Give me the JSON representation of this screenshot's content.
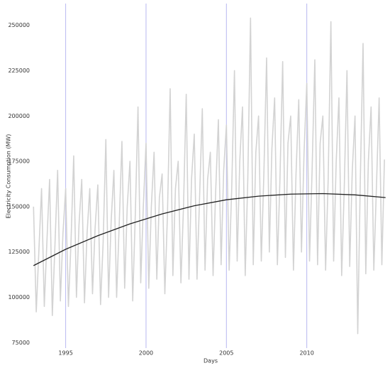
{
  "chart_data": {
    "type": "line",
    "x_label": "Days",
    "y_label": "Electricity Consumption (MW)",
    "xlim": [
      1992.9,
      2015.0
    ],
    "ylim": [
      72000,
      262000
    ],
    "xticks": [
      1995,
      2000,
      2005,
      2010
    ],
    "yticks": [
      75000,
      100000,
      125000,
      150000,
      175000,
      200000,
      225000,
      250000
    ],
    "grid_color": "#b8b8f0",
    "series": [
      {
        "color": "#d3d3d3",
        "x": [
          1993,
          1993.17,
          1993.33,
          1993.5,
          1993.67,
          1993.83,
          1994,
          1994.17,
          1994.33,
          1994.5,
          1994.67,
          1994.83,
          1995,
          1995.17,
          1995.33,
          1995.5,
          1995.67,
          1995.83,
          1996,
          1996.17,
          1996.33,
          1996.5,
          1996.67,
          1996.83,
          1997,
          1997.17,
          1997.33,
          1997.5,
          1997.67,
          1997.83,
          1998,
          1998.17,
          1998.33,
          1998.5,
          1998.67,
          1998.83,
          1999,
          1999.17,
          1999.33,
          1999.5,
          1999.67,
          1999.83,
          2000,
          2000.17,
          2000.33,
          2000.5,
          2000.67,
          2000.83,
          2001,
          2001.17,
          2001.33,
          2001.5,
          2001.67,
          2001.83,
          2002,
          2002.17,
          2002.33,
          2002.5,
          2002.67,
          2002.83,
          2003,
          2003.17,
          2003.33,
          2003.5,
          2003.67,
          2003.83,
          2004,
          2004.17,
          2004.33,
          2004.5,
          2004.67,
          2004.83,
          2005,
          2005.17,
          2005.33,
          2005.5,
          2005.67,
          2005.83,
          2006,
          2006.17,
          2006.33,
          2006.5,
          2006.67,
          2006.83,
          2007,
          2007.17,
          2007.33,
          2007.5,
          2007.67,
          2007.83,
          2008,
          2008.17,
          2008.33,
          2008.5,
          2008.67,
          2008.83,
          2009,
          2009.17,
          2009.33,
          2009.5,
          2009.67,
          2009.83,
          2010,
          2010.17,
          2010.33,
          2010.5,
          2010.67,
          2010.83,
          2011,
          2011.17,
          2011.33,
          2011.5,
          2011.67,
          2011.83,
          2012,
          2012.17,
          2012.33,
          2012.5,
          2012.67,
          2012.83,
          2013,
          2013.17,
          2013.33,
          2013.5,
          2013.67,
          2013.83,
          2014,
          2014.17,
          2014.33,
          2014.5,
          2014.67,
          2014.83
        ],
        "values": [
          150000,
          92000,
          125000,
          160000,
          95000,
          130000,
          165000,
          90000,
          128000,
          170000,
          98000,
          135000,
          160000,
          95000,
          130000,
          178000,
          100000,
          140000,
          165000,
          97000,
          135000,
          160000,
          102000,
          138000,
          162000,
          96000,
          130000,
          187000,
          100000,
          142000,
          170000,
          100000,
          140000,
          186000,
          105000,
          150000,
          175000,
          98000,
          145000,
          205000,
          108000,
          150000,
          185000,
          105000,
          150000,
          180000,
          110000,
          155000,
          168000,
          102000,
          145000,
          215000,
          112000,
          160000,
          175000,
          108000,
          150000,
          212000,
          110000,
          165000,
          190000,
          110000,
          155000,
          204000,
          115000,
          165000,
          180000,
          112000,
          158000,
          198000,
          118000,
          170000,
          195000,
          115000,
          160000,
          225000,
          120000,
          175000,
          205000,
          112000,
          165000,
          254000,
          118000,
          180000,
          200000,
          120000,
          168000,
          232000,
          125000,
          182000,
          210000,
          118000,
          165000,
          230000,
          122000,
          185000,
          200000,
          115000,
          168000,
          209000,
          125000,
          180000,
          218000,
          120000,
          170000,
          231000,
          118000,
          185000,
          200000,
          115000,
          165000,
          252000,
          120000,
          175000,
          210000,
          112000,
          160000,
          225000,
          117000,
          170000,
          200000,
          80000,
          165000,
          240000,
          113000,
          175000,
          205000,
          115000,
          160000,
          210000,
          118000,
          176000
        ]
      },
      {
        "color": "#222222",
        "x": [
          1993,
          1995,
          1997,
          1999,
          2001,
          2003,
          2005,
          2007,
          2009,
          2011,
          2013,
          2014.9
        ],
        "values": [
          117500,
          126500,
          134000,
          140500,
          146000,
          150500,
          153800,
          155800,
          156900,
          157200,
          156500,
          155000
        ]
      }
    ]
  }
}
